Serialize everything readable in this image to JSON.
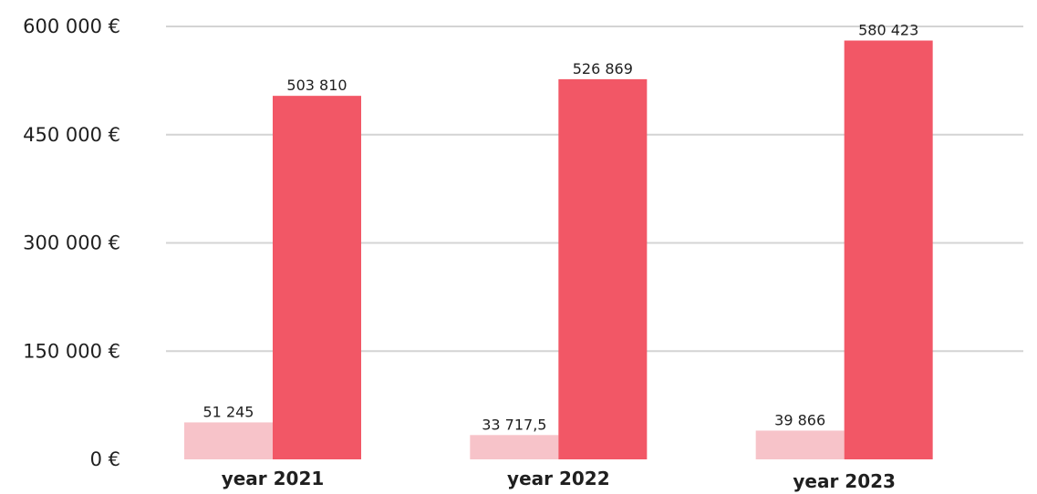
{
  "chart_data": {
    "type": "bar",
    "categories": [
      "year 2021",
      "year 2022",
      "year 2023"
    ],
    "series": [
      {
        "values": [
          51245,
          33717.5,
          39866
        ],
        "labels": [
          "51 245",
          "33 717,5",
          "39 866"
        ],
        "color": "#f7c3c9"
      },
      {
        "values": [
          503810,
          526869,
          580423
        ],
        "labels": [
          "503 810",
          "526 869",
          "580 423"
        ],
        "color": "#f25766"
      }
    ],
    "yticks": [
      0,
      150000,
      300000,
      450000,
      600000
    ],
    "ytick_labels": [
      "0 €",
      "150 000 €",
      "300 000 €",
      "450 000 €",
      "600 000 €"
    ],
    "ylim": [
      0,
      600000
    ],
    "grid": true,
    "gridline_color": "#d4d4d4",
    "legend": "none"
  }
}
